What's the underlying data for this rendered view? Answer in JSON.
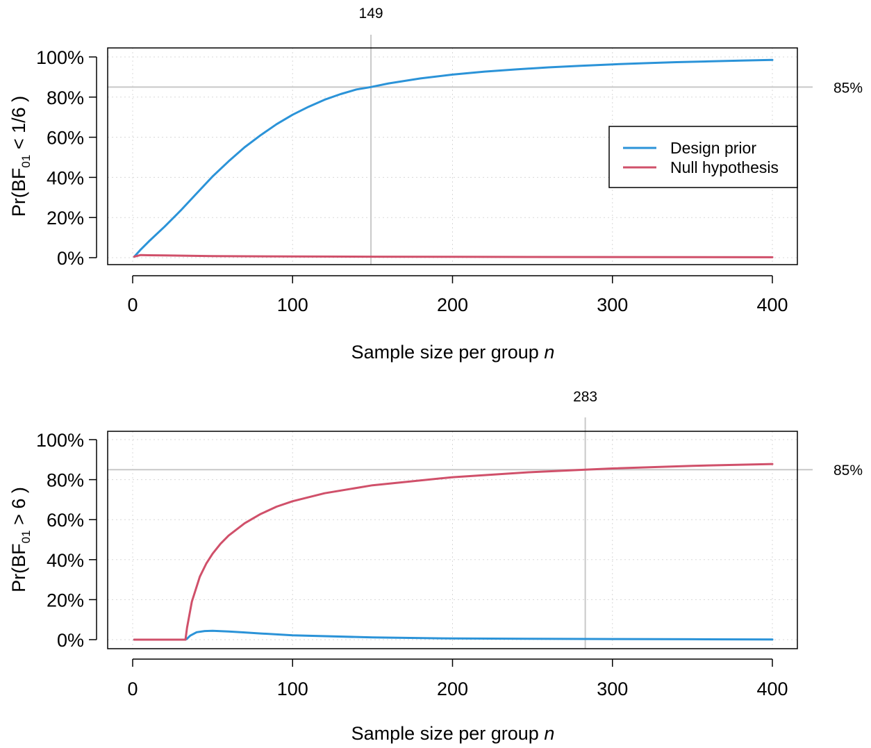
{
  "chart_data": [
    {
      "type": "line",
      "ylabel_prefix": "Pr(BF",
      "ylabel_sub": "01",
      "ylabel_suffix": " < 1/6 )",
      "xlabel_text": "Sample size per group ",
      "xlabel_italic": "n",
      "xlim": [
        0,
        400
      ],
      "ylim": [
        0,
        1
      ],
      "x_ticks": [
        0,
        100,
        200,
        300,
        400
      ],
      "x_tick_labels": [
        "0",
        "100",
        "200",
        "300",
        "400"
      ],
      "y_ticks": [
        0,
        0.2,
        0.4,
        0.6,
        0.8,
        1.0
      ],
      "y_tick_labels": [
        "0%",
        "20%",
        "40%",
        "60%",
        "80%",
        "100%"
      ],
      "grid": true,
      "legend_placement": "right",
      "reference_y": 0.85,
      "reference_y_label": "85%",
      "reference_x": 149,
      "reference_x_label": "149",
      "series": [
        {
          "name": "Design prior",
          "color": "#2b93d8",
          "x": [
            1,
            5,
            10,
            20,
            30,
            40,
            50,
            60,
            70,
            80,
            90,
            100,
            110,
            120,
            130,
            140,
            149,
            160,
            180,
            200,
            220,
            240,
            260,
            280,
            300,
            320,
            340,
            360,
            380,
            400
          ],
          "y": [
            0.005,
            0.04,
            0.08,
            0.155,
            0.235,
            0.32,
            0.405,
            0.48,
            0.55,
            0.61,
            0.665,
            0.712,
            0.752,
            0.787,
            0.815,
            0.838,
            0.85,
            0.868,
            0.893,
            0.912,
            0.927,
            0.938,
            0.948,
            0.956,
            0.963,
            0.969,
            0.974,
            0.978,
            0.982,
            0.985
          ]
        },
        {
          "name": "Null hypothesis",
          "color": "#d0506a",
          "x": [
            1,
            5,
            10,
            20,
            50,
            100,
            150,
            200,
            300,
            400
          ],
          "y": [
            0.005,
            0.013,
            0.012,
            0.011,
            0.008,
            0.006,
            0.005,
            0.004,
            0.003,
            0.002
          ]
        }
      ]
    },
    {
      "type": "line",
      "ylabel_prefix": "Pr(BF",
      "ylabel_sub": "01",
      "ylabel_suffix": " > 6 )",
      "xlabel_text": "Sample size per group ",
      "xlabel_italic": "n",
      "xlim": [
        0,
        400
      ],
      "ylim": [
        0,
        1
      ],
      "x_ticks": [
        0,
        100,
        200,
        300,
        400
      ],
      "x_tick_labels": [
        "0",
        "100",
        "200",
        "300",
        "400"
      ],
      "y_ticks": [
        0,
        0.2,
        0.4,
        0.6,
        0.8,
        1.0
      ],
      "y_tick_labels": [
        "0%",
        "20%",
        "40%",
        "60%",
        "80%",
        "100%"
      ],
      "grid": true,
      "reference_y": 0.85,
      "reference_y_label": "85%",
      "reference_x": 283,
      "reference_x_label": "283",
      "series": [
        {
          "name": "Design prior",
          "color": "#2b93d8",
          "x": [
            1,
            33,
            34,
            36,
            40,
            45,
            50,
            60,
            70,
            80,
            100,
            150,
            200,
            250,
            300,
            350,
            400
          ],
          "y": [
            0,
            0,
            0.005,
            0.02,
            0.037,
            0.043,
            0.044,
            0.041,
            0.036,
            0.031,
            0.022,
            0.011,
            0.006,
            0.004,
            0.003,
            0.002,
            0.001
          ]
        },
        {
          "name": "Null hypothesis",
          "color": "#d0506a",
          "x": [
            1,
            33,
            34,
            37,
            42,
            46,
            50,
            55,
            60,
            70,
            80,
            90,
            100,
            120,
            150,
            200,
            250,
            283,
            300,
            350,
            400
          ],
          "y": [
            0,
            0,
            0.06,
            0.19,
            0.315,
            0.38,
            0.43,
            0.48,
            0.52,
            0.582,
            0.628,
            0.665,
            0.692,
            0.732,
            0.772,
            0.812,
            0.838,
            0.85,
            0.856,
            0.869,
            0.878
          ]
        }
      ]
    }
  ]
}
